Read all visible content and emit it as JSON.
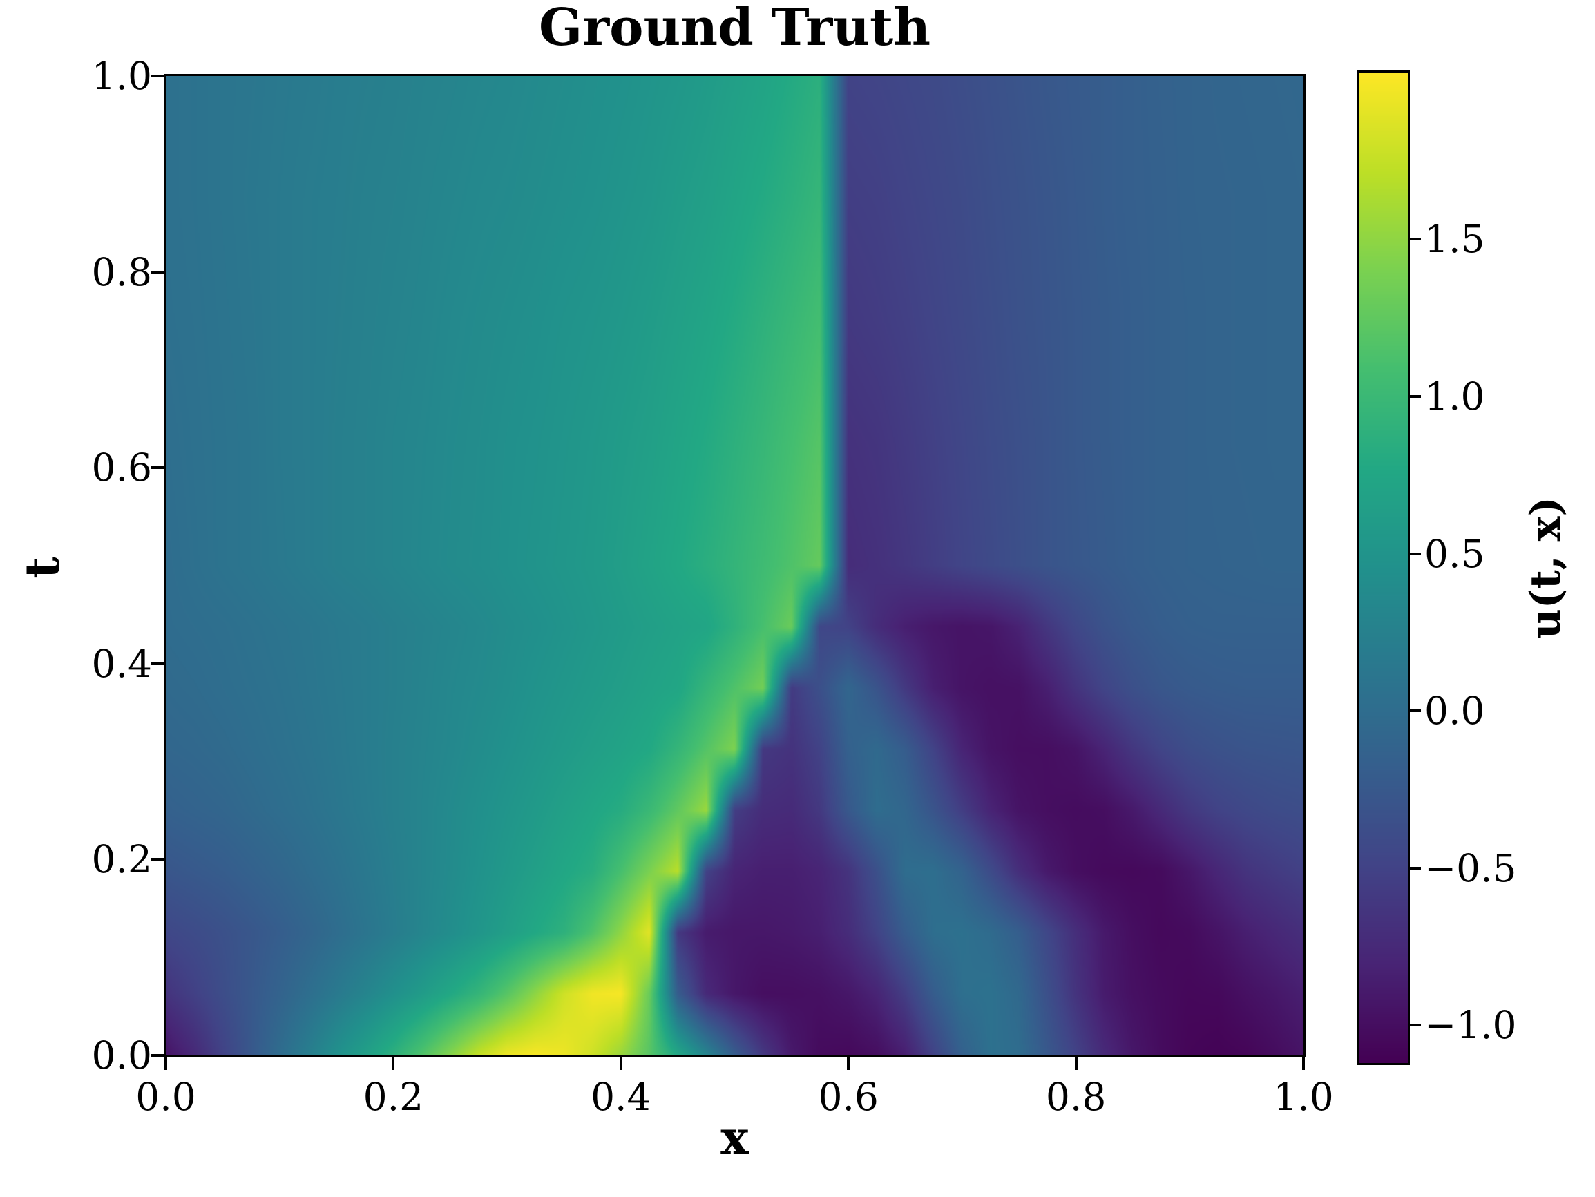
{
  "title": "Ground Truth",
  "x_axis": {
    "label": "x",
    "tick_labels": [
      "0.0",
      "0.2",
      "0.4",
      "0.6",
      "0.8",
      "1.0"
    ],
    "tick_values": [
      0.0,
      0.2,
      0.4,
      0.6,
      0.8,
      1.0
    ]
  },
  "y_axis": {
    "label": "t",
    "tick_labels": [
      "1.0",
      "0.8",
      "0.6",
      "0.4",
      "0.2",
      "0.0"
    ],
    "tick_values": [
      1.0,
      0.8,
      0.6,
      0.4,
      0.2,
      0.0
    ]
  },
  "colorbar": {
    "label": "u(t, x)",
    "tick_labels": [
      "1.5",
      "1.0",
      "0.5",
      "0.0",
      "−0.5",
      "−1.0"
    ],
    "tick_values": [
      1.5,
      1.0,
      0.5,
      0.0,
      -0.5,
      -1.0
    ],
    "vmin": -1.12,
    "vmax": 2.03
  },
  "chart_data": {
    "type": "heatmap",
    "title": "Ground Truth",
    "xlabel": "x",
    "ylabel": "t",
    "colorbar_label": "u(t, x)",
    "colormap": "viridis",
    "vmin": -1.12,
    "vmax": 2.03,
    "xlim": [
      0,
      1
    ],
    "ylim": [
      0,
      1
    ],
    "grid": false,
    "x": [
      0,
      0.025,
      0.05,
      0.075,
      0.1,
      0.125,
      0.15,
      0.175,
      0.2,
      0.225,
      0.25,
      0.275,
      0.3,
      0.325,
      0.35,
      0.375,
      0.4,
      0.425,
      0.45,
      0.475,
      0.5,
      0.525,
      0.55,
      0.575,
      0.6,
      0.625,
      0.65,
      0.675,
      0.7,
      0.725,
      0.75,
      0.775,
      0.8,
      0.825,
      0.85,
      0.875,
      0.9,
      0.925,
      0.95,
      0.975,
      1.0
    ],
    "t": [
      0,
      0.0625,
      0.125,
      0.1875,
      0.25,
      0.3125,
      0.375,
      0.4375,
      0.5,
      0.625,
      0.75,
      0.875,
      1.0
    ],
    "u": [
      [
        -0.95,
        -0.75,
        -0.5,
        -0.25,
        0.0,
        0.22,
        0.45,
        0.65,
        0.88,
        1.15,
        1.45,
        1.75,
        1.95,
        2.0,
        1.95,
        1.8,
        1.55,
        1.2,
        0.75,
        0.3,
        -0.2,
        -0.6,
        -0.9,
        -1.03,
        -1.05,
        -1.0,
        -0.85,
        -0.5,
        -0.15,
        0.05,
        0.0,
        -0.25,
        -0.5,
        -0.75,
        -0.92,
        -1.02,
        -1.08,
        -1.1,
        -1.08,
        -1.02,
        -0.95
      ],
      [
        -0.65,
        -0.52,
        -0.38,
        -0.25,
        -0.12,
        0.02,
        0.16,
        0.3,
        0.45,
        0.6,
        0.77,
        0.95,
        1.2,
        1.5,
        1.8,
        1.97,
        2.0,
        1.3,
        -0.2,
        -0.75,
        -0.92,
        -1.0,
        -1.0,
        -0.98,
        -0.92,
        -0.8,
        -0.55,
        -0.2,
        0.03,
        0.06,
        -0.05,
        -0.35,
        -0.65,
        -0.88,
        -0.98,
        -1.03,
        -1.06,
        -1.05,
        -0.98,
        -0.92,
        -0.85
      ],
      [
        -0.45,
        -0.4,
        -0.34,
        -0.27,
        -0.19,
        -0.1,
        0.0,
        0.1,
        0.2,
        0.31,
        0.41,
        0.52,
        0.64,
        0.77,
        0.89,
        1.15,
        1.5,
        1.9,
        -0.6,
        -0.88,
        -0.92,
        -0.92,
        -0.9,
        -0.85,
        -0.72,
        -0.5,
        -0.2,
        0.02,
        0.05,
        -0.02,
        -0.18,
        -0.45,
        -0.7,
        -0.9,
        -1.0,
        -1.05,
        -1.03,
        -0.95,
        -0.85,
        -0.77,
        -0.7
      ],
      [
        -0.28,
        -0.24,
        -0.2,
        -0.14,
        -0.08,
        -0.01,
        0.06,
        0.14,
        0.22,
        0.3,
        0.38,
        0.47,
        0.56,
        0.65,
        0.75,
        0.84,
        1.1,
        1.4,
        1.7,
        -0.5,
        -0.8,
        -0.85,
        -0.85,
        -0.8,
        -0.65,
        -0.35,
        0.0,
        0.02,
        -0.12,
        -0.4,
        -0.7,
        -0.9,
        -1.0,
        -1.04,
        -1.05,
        -1.03,
        -0.92,
        -0.78,
        -0.65,
        -0.58,
        -0.52
      ],
      [
        -0.15,
        -0.12,
        -0.09,
        -0.04,
        0.01,
        0.06,
        0.12,
        0.18,
        0.24,
        0.3,
        0.37,
        0.44,
        0.51,
        0.58,
        0.66,
        0.74,
        0.82,
        1.0,
        1.25,
        1.55,
        -0.55,
        -0.72,
        -0.74,
        -0.6,
        -0.25,
        0.0,
        -0.08,
        -0.3,
        -0.55,
        -0.8,
        -0.95,
        -1.0,
        -1.02,
        -1.0,
        -0.9,
        -0.75,
        -0.6,
        -0.5,
        -0.44,
        -0.4,
        -0.38
      ],
      [
        -0.08,
        -0.06,
        -0.03,
        0.01,
        0.05,
        0.09,
        0.14,
        0.19,
        0.24,
        0.29,
        0.34,
        0.4,
        0.46,
        0.52,
        0.58,
        0.64,
        0.7,
        0.77,
        0.95,
        1.18,
        1.42,
        -0.6,
        -0.66,
        -0.5,
        -0.15,
        -0.04,
        -0.2,
        -0.5,
        -0.8,
        -0.95,
        -1.0,
        -1.0,
        -0.95,
        -0.8,
        -0.62,
        -0.48,
        -0.38,
        -0.33,
        -0.3,
        -0.29,
        -0.28
      ],
      [
        -0.04,
        -0.02,
        0.01,
        0.04,
        0.07,
        0.11,
        0.15,
        0.19,
        0.23,
        0.28,
        0.33,
        0.37,
        0.42,
        0.48,
        0.53,
        0.58,
        0.63,
        0.69,
        0.74,
        0.95,
        1.15,
        1.36,
        -0.58,
        -0.35,
        -0.08,
        -0.3,
        -0.6,
        -0.85,
        -0.95,
        -0.98,
        -0.97,
        -0.85,
        -0.65,
        -0.48,
        -0.35,
        -0.27,
        -0.23,
        -0.21,
        -0.2,
        -0.2,
        -0.2
      ],
      [
        -0.01,
        0.01,
        0.03,
        0.06,
        0.09,
        0.12,
        0.16,
        0.19,
        0.23,
        0.27,
        0.31,
        0.35,
        0.4,
        0.44,
        0.49,
        0.54,
        0.59,
        0.64,
        0.69,
        0.73,
        0.9,
        1.1,
        1.31,
        -0.45,
        -0.5,
        -0.72,
        -0.85,
        -0.92,
        -0.95,
        -0.93,
        -0.82,
        -0.62,
        -0.45,
        -0.32,
        -0.24,
        -0.19,
        -0.16,
        -0.15,
        -0.15,
        -0.15,
        -0.15
      ],
      [
        0.0,
        0.04,
        0.08,
        0.11,
        0.15,
        0.19,
        0.23,
        0.26,
        0.3,
        0.34,
        0.38,
        0.41,
        0.45,
        0.49,
        0.53,
        0.57,
        0.63,
        0.7,
        0.77,
        0.85,
        0.94,
        1.04,
        1.15,
        1.28,
        -0.72,
        -0.68,
        -0.62,
        -0.55,
        -0.48,
        -0.42,
        -0.36,
        -0.3,
        -0.26,
        -0.22,
        -0.18,
        -0.15,
        -0.13,
        -0.12,
        -0.11,
        -0.1,
        -0.1
      ],
      [
        0.02,
        0.05,
        0.08,
        0.11,
        0.16,
        0.19,
        0.23,
        0.26,
        0.3,
        0.33,
        0.37,
        0.4,
        0.44,
        0.47,
        0.51,
        0.55,
        0.6,
        0.65,
        0.72,
        0.79,
        0.88,
        0.97,
        1.08,
        1.19,
        -0.67,
        -0.64,
        -0.58,
        -0.52,
        -0.46,
        -0.4,
        -0.35,
        -0.3,
        -0.25,
        -0.21,
        -0.18,
        -0.15,
        -0.13,
        -0.11,
        -0.1,
        -0.09,
        -0.09
      ],
      [
        0.04,
        0.06,
        0.09,
        0.12,
        0.16,
        0.19,
        0.22,
        0.25,
        0.28,
        0.31,
        0.35,
        0.38,
        0.41,
        0.44,
        0.48,
        0.51,
        0.55,
        0.6,
        0.66,
        0.72,
        0.8,
        0.89,
        0.98,
        1.08,
        -0.6,
        -0.57,
        -0.53,
        -0.48,
        -0.43,
        -0.38,
        -0.33,
        -0.29,
        -0.25,
        -0.21,
        -0.18,
        -0.15,
        -0.13,
        -0.11,
        -0.1,
        -0.09,
        -0.08
      ],
      [
        0.05,
        0.07,
        0.1,
        0.13,
        0.16,
        0.19,
        0.21,
        0.24,
        0.26,
        0.29,
        0.32,
        0.35,
        0.37,
        0.4,
        0.43,
        0.46,
        0.5,
        0.54,
        0.6,
        0.65,
        0.72,
        0.79,
        0.87,
        0.96,
        -0.55,
        -0.53,
        -0.49,
        -0.45,
        -0.41,
        -0.36,
        -0.32,
        -0.28,
        -0.24,
        -0.2,
        -0.17,
        -0.15,
        -0.12,
        -0.11,
        -0.1,
        -0.09,
        -0.08
      ],
      [
        0.05,
        0.07,
        0.1,
        0.12,
        0.15,
        0.17,
        0.2,
        0.22,
        0.24,
        0.27,
        0.29,
        0.32,
        0.34,
        0.37,
        0.4,
        0.43,
        0.46,
        0.5,
        0.54,
        0.59,
        0.65,
        0.71,
        0.79,
        0.87,
        -0.5,
        -0.48,
        -0.45,
        -0.42,
        -0.38,
        -0.34,
        -0.3,
        -0.26,
        -0.23,
        -0.2,
        -0.17,
        -0.14,
        -0.12,
        -0.1,
        -0.09,
        -0.08,
        -0.07
      ]
    ]
  },
  "palette": {
    "name": "viridis",
    "stops": [
      [
        0.0,
        68,
        1,
        84
      ],
      [
        0.1,
        72,
        36,
        117
      ],
      [
        0.2,
        65,
        68,
        135
      ],
      [
        0.3,
        53,
        95,
        141
      ],
      [
        0.4,
        42,
        120,
        142
      ],
      [
        0.5,
        33,
        145,
        140
      ],
      [
        0.6,
        34,
        168,
        132
      ],
      [
        0.7,
        68,
        190,
        112
      ],
      [
        0.8,
        122,
        209,
        81
      ],
      [
        0.9,
        189,
        223,
        38
      ],
      [
        1.0,
        253,
        231,
        37
      ]
    ],
    "min_color": "#440154",
    "max_color": "#fde725"
  }
}
